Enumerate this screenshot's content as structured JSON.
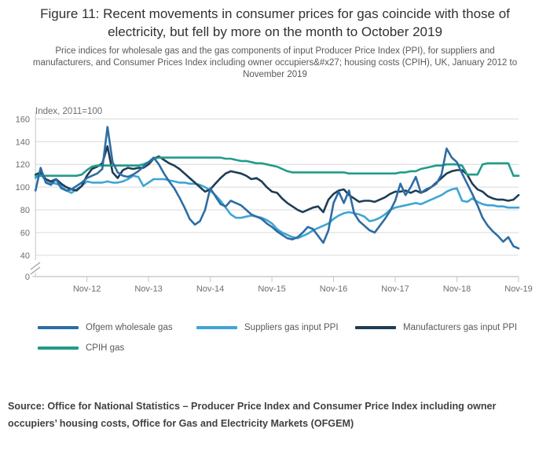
{
  "title": "Figure 11: Recent movements in consumer prices for gas coincide with those of electricity, but fell by more on the month to October 2019",
  "subtitle": "Price indices for wholesale gas and the gas components of input Producer Price Index (PPI), for suppliers and manufacturers, and Consumer Prices Index including owner occupiers&#x27; housing costs (CPIH), UK, January 2012 to November 2019",
  "source": "Source: Office for National Statistics – Producer Price Index and Consumer Price Index including owner occupiers’ housing costs, Office for Gas and Electricity Markets (OFGEM)",
  "chart_data": {
    "type": "line",
    "y_axis_label": "Index, 2011=100",
    "x_start": "Jan-2012",
    "x_end": "Nov-2019",
    "x_unit": "month",
    "x_tick_labels": [
      "Nov-12",
      "Nov-13",
      "Nov-14",
      "Nov-15",
      "Nov-16",
      "Nov-17",
      "Nov-18",
      "Nov-19"
    ],
    "x_tick_month_index": [
      10,
      22,
      34,
      46,
      58,
      70,
      82,
      94
    ],
    "y_ticks": [
      0,
      40,
      60,
      80,
      100,
      120,
      140,
      160
    ],
    "y_axis_break_between": [
      0,
      40
    ],
    "ylim_upper_segment": [
      40,
      160
    ],
    "grid": true,
    "legend_position": "bottom",
    "colors": {
      "grid": "#d9d9d9",
      "axis": "#b3b3b3",
      "tick": "#b9c7de",
      "tick_text": "#6e6e6e"
    },
    "series": [
      {
        "id": "ofgem-wholesale-gas",
        "name": "Ofgem wholesale gas",
        "color": "#2d6da3",
        "values": [
          97,
          117,
          104,
          102,
          107,
          99,
          97,
          98,
          101,
          104,
          108,
          110,
          112,
          116,
          153,
          122,
          113,
          110,
          109,
          111,
          114,
          118,
          122,
          126,
          120,
          112,
          105,
          99,
          91,
          82,
          72,
          67,
          70,
          80,
          99,
          92,
          85,
          83,
          88,
          86,
          84,
          80,
          76,
          74,
          72,
          68,
          65,
          61,
          58,
          55,
          54,
          56,
          60,
          65,
          63,
          57,
          51,
          62,
          86,
          96,
          86,
          97,
          77,
          70,
          66,
          62,
          60,
          66,
          72,
          79,
          88,
          103,
          93,
          100,
          109,
          95,
          98,
          100,
          103,
          111,
          134,
          126,
          122,
          112,
          103,
          94,
          84,
          73,
          66,
          61,
          57,
          52,
          56,
          48,
          46
        ]
      },
      {
        "id": "suppliers-gas-input-ppi",
        "name": "Suppliers gas input PPI",
        "color": "#3fa5d3",
        "values": [
          108,
          111,
          106,
          104,
          103,
          101,
          97,
          95,
          98,
          101,
          105,
          104,
          104,
          104,
          105,
          104,
          104,
          105,
          107,
          110,
          109,
          101,
          104,
          107,
          107,
          107,
          106,
          105,
          104,
          104,
          103,
          103,
          102,
          100,
          97,
          93,
          88,
          82,
          76,
          73,
          73,
          74,
          75,
          74,
          73,
          71,
          68,
          63,
          60,
          58,
          56,
          55,
          57,
          59,
          62,
          64,
          66,
          68,
          72,
          75,
          77,
          78,
          77,
          76,
          74,
          70,
          71,
          73,
          76,
          80,
          82,
          83,
          84,
          85,
          86,
          85,
          87,
          89,
          91,
          93,
          96,
          98,
          99,
          88,
          87,
          90,
          87,
          85,
          84,
          84,
          83,
          83,
          82,
          82,
          82
        ]
      },
      {
        "id": "manufacturers-gas-input-ppi",
        "name": "Manufacturers gas input PPI",
        "color": "#1e3d55",
        "values": [
          111,
          113,
          107,
          105,
          107,
          103,
          100,
          98,
          97,
          101,
          110,
          116,
          118,
          121,
          136,
          113,
          108,
          115,
          117,
          116,
          117,
          117,
          120,
          125,
          127,
          124,
          121,
          119,
          116,
          112,
          108,
          104,
          100,
          96,
          98,
          103,
          108,
          112,
          114,
          113,
          112,
          110,
          107,
          108,
          105,
          100,
          96,
          95,
          90,
          86,
          83,
          80,
          78,
          80,
          82,
          83,
          78,
          89,
          94,
          97,
          98,
          93,
          90,
          87,
          88,
          88,
          87,
          89,
          91,
          94,
          96,
          96,
          97,
          95,
          97,
          95,
          97,
          100,
          104,
          108,
          112,
          114,
          115,
          115,
          111,
          103,
          98,
          96,
          92,
          90,
          89,
          89,
          88,
          89,
          93
        ]
      },
      {
        "id": "cpih-gas",
        "name": "CPIH gas",
        "color": "#209c8a",
        "values": [
          110,
          110,
          110,
          110,
          110,
          110,
          110,
          110,
          110,
          111,
          115,
          118,
          119,
          119,
          119,
          119,
          119,
          119,
          119,
          119,
          119,
          120,
          122,
          125,
          126,
          126,
          126,
          126,
          126,
          126,
          126,
          126,
          126,
          126,
          126,
          126,
          126,
          125,
          125,
          124,
          123,
          123,
          122,
          121,
          121,
          120,
          119,
          118,
          116,
          114,
          113,
          113,
          113,
          113,
          113,
          113,
          113,
          113,
          113,
          113,
          113,
          112,
          112,
          112,
          112,
          112,
          112,
          112,
          112,
          112,
          112,
          113,
          113,
          114,
          114,
          116,
          117,
          118,
          119,
          119,
          120,
          120,
          120,
          119,
          111,
          111,
          111,
          120,
          121,
          121,
          121,
          121,
          121,
          110,
          110
        ]
      }
    ]
  }
}
